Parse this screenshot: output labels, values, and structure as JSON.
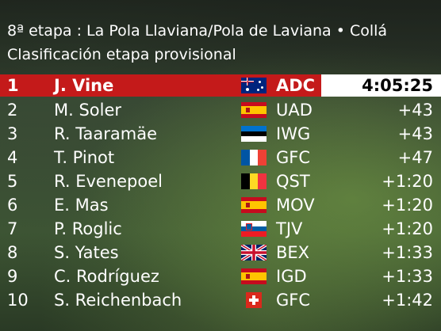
{
  "header": {
    "stage": "8ª etapa : La Pola Llaviana/Pola de Laviana • Collá",
    "classification": "Clasificación etapa provisional"
  },
  "rows": [
    {
      "pos": "1",
      "name": "J. Vine",
      "flag": "australia",
      "team": "ADC",
      "time": "4:05:25"
    },
    {
      "pos": "2",
      "name": "M. Soler",
      "flag": "spain",
      "team": "UAD",
      "time": "+43"
    },
    {
      "pos": "3",
      "name": "R. Taaramäe",
      "flag": "estonia",
      "team": "IWG",
      "time": "+43"
    },
    {
      "pos": "4",
      "name": "T. Pinot",
      "flag": "france",
      "team": "GFC",
      "time": "+47"
    },
    {
      "pos": "5",
      "name": "R. Evenepoel",
      "flag": "belgium",
      "team": "QST",
      "time": "+1:20"
    },
    {
      "pos": "6",
      "name": "E. Mas",
      "flag": "spain",
      "team": "MOV",
      "time": "+1:20"
    },
    {
      "pos": "7",
      "name": "P. Roglic",
      "flag": "slovenia",
      "team": "TJV",
      "time": "+1:20"
    },
    {
      "pos": "8",
      "name": "S. Yates",
      "flag": "united-kingdom",
      "team": "BEX",
      "time": "+1:33"
    },
    {
      "pos": "9",
      "name": "C. Rodríguez",
      "flag": "spain",
      "team": "IGD",
      "time": "+1:33"
    },
    {
      "pos": "10",
      "name": "S. Reichenbach",
      "flag": "switzerland",
      "team": "GFC",
      "time": "+1:42"
    }
  ],
  "colors": {
    "leader_bar": "#c41a1a",
    "time_box": "#ffffff"
  }
}
